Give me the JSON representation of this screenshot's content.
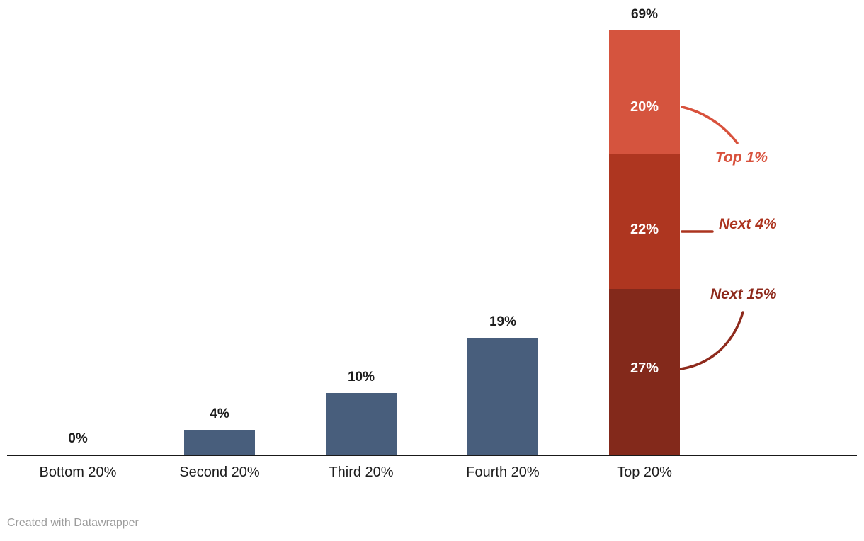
{
  "footer": {
    "credit": "Created with Datawrapper"
  },
  "chart_data": {
    "type": "bar",
    "title": "",
    "xlabel": "",
    "ylabel": "",
    "categories": [
      "Bottom 20%",
      "Second 20%",
      "Third 20%",
      "Fourth 20%",
      "Top 20%"
    ],
    "values": [
      0,
      4,
      10,
      19,
      69
    ],
    "value_labels": [
      "0%",
      "4%",
      "10%",
      "19%",
      "69%"
    ],
    "bar_color": "#485E7C",
    "baseline_color": "#191919",
    "value_label_color": "#1d1d1d",
    "category_label_color": "#1d1d1d",
    "ylim": [
      0,
      69
    ],
    "grid": false,
    "legend": "none",
    "top_bar_segments": [
      {
        "annotation": "Next 15%",
        "label": "27%",
        "value": 27,
        "color": "#83291B",
        "annotation_color": "#8E2A1C"
      },
      {
        "annotation": "Next 4%",
        "label": "22%",
        "value": 22,
        "color": "#AE3620",
        "annotation_color": "#AC341F"
      },
      {
        "annotation": "Top 1%",
        "label": "20%",
        "value": 20,
        "color": "#D5543E",
        "annotation_color": "#D8513C"
      }
    ]
  }
}
